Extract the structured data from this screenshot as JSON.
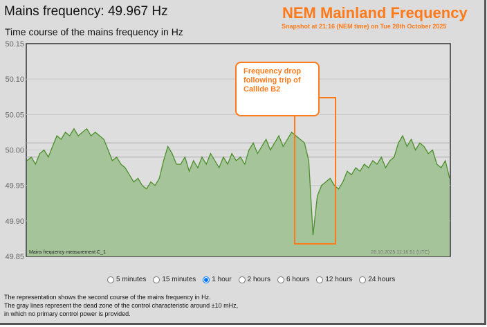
{
  "header": {
    "title": "Mains frequency: 49.967 Hz",
    "subtitle": "Time course of the mains frequency in Hz"
  },
  "overlay": {
    "title": "NEM Mainland Frequency",
    "snapshot": "Snapshot at 21:16 (NEM time) on Tue 28th October 2025",
    "annotation": "Frequency drop following trip of Callide B2",
    "accent": "#ff7a1a"
  },
  "chart_data": {
    "type": "area",
    "ylim": [
      49.85,
      50.15
    ],
    "yticks": [
      "50.15",
      "50.10",
      "50.05",
      "50.00",
      "49.95",
      "49.90",
      "49.85"
    ],
    "dead_zone": [
      49.99,
      50.01
    ],
    "grid": true,
    "series_label": "Mains frequency measurement C_1",
    "timestamp": "28.10.2025 11:16:51 (UTC)",
    "line_color": "#4a8f2a",
    "fill_color": "#a6c49a",
    "values": [
      49.985,
      49.99,
      49.98,
      49.995,
      50.0,
      49.99,
      50.005,
      50.02,
      50.015,
      50.025,
      50.02,
      50.03,
      50.02,
      50.025,
      50.03,
      50.02,
      50.025,
      50.02,
      50.015,
      50.0,
      49.985,
      49.99,
      49.98,
      49.975,
      49.965,
      49.955,
      49.96,
      49.95,
      49.945,
      49.955,
      49.95,
      49.96,
      49.985,
      50.005,
      49.995,
      49.98,
      49.98,
      49.99,
      49.97,
      49.985,
      49.975,
      49.99,
      49.98,
      49.995,
      49.985,
      49.975,
      49.99,
      49.98,
      49.995,
      49.985,
      49.99,
      49.98,
      50.0,
      50.01,
      49.995,
      50.005,
      50.015,
      50.0,
      50.01,
      50.02,
      50.005,
      50.015,
      50.025,
      50.02,
      50.015,
      50.01,
      49.985,
      49.88,
      49.935,
      49.95,
      49.955,
      49.96,
      49.95,
      49.945,
      49.955,
      49.97,
      49.965,
      49.975,
      49.97,
      49.98,
      49.975,
      49.985,
      49.98,
      49.99,
      49.975,
      49.985,
      49.99,
      50.01,
      50.02,
      50.005,
      50.015,
      50.0,
      50.01,
      50.005,
      49.995,
      50.0,
      49.98,
      49.975,
      49.985,
      49.96
    ]
  },
  "ranges": [
    {
      "label": "5 minutes",
      "checked": false
    },
    {
      "label": "15 minutes",
      "checked": false
    },
    {
      "label": "1 hour",
      "checked": true
    },
    {
      "label": "2 hours",
      "checked": false
    },
    {
      "label": "6 hours",
      "checked": false
    },
    {
      "label": "12 hours",
      "checked": false
    },
    {
      "label": "24 hours",
      "checked": false
    }
  ],
  "notes": [
    "The representation shows the second course of the mains frequency in Hz.",
    "The gray lines represent the dead zone of the control characteristic around ±10 mHz,",
    "in which no primary control power is provided."
  ]
}
